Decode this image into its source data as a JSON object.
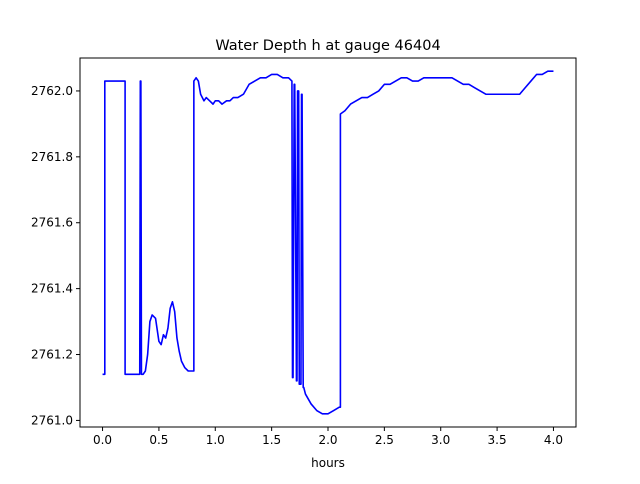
{
  "chart_data": {
    "type": "line",
    "title": "Water Depth h at gauge 46404",
    "xlabel": "hours",
    "ylabel": "",
    "xlim": [
      -0.2,
      4.2
    ],
    "ylim": [
      2760.98,
      2762.1
    ],
    "xticks": [
      0.0,
      0.5,
      1.0,
      1.5,
      2.0,
      2.5,
      3.0,
      3.5,
      4.0
    ],
    "xtick_labels": [
      "0.0",
      "0.5",
      "1.0",
      "1.5",
      "2.0",
      "2.5",
      "3.0",
      "3.5",
      "4.0"
    ],
    "yticks": [
      2761.0,
      2761.2,
      2761.4,
      2761.6,
      2761.8,
      2762.0
    ],
    "ytick_labels": [
      "2761.0",
      "2761.2",
      "2761.4",
      "2761.6",
      "2761.8",
      "2762.0"
    ],
    "grid": false,
    "series": [
      {
        "color": "#0000ff",
        "x": [
          0.0,
          0.02,
          0.02,
          0.2,
          0.2,
          0.3,
          0.32,
          0.33,
          0.335,
          0.34,
          0.345,
          0.36,
          0.38,
          0.4,
          0.42,
          0.44,
          0.47,
          0.5,
          0.52,
          0.54,
          0.56,
          0.58,
          0.6,
          0.62,
          0.64,
          0.66,
          0.68,
          0.7,
          0.73,
          0.76,
          0.8,
          0.81,
          0.81,
          0.83,
          0.85,
          0.87,
          0.9,
          0.92,
          0.95,
          0.98,
          1.0,
          1.03,
          1.06,
          1.1,
          1.13,
          1.16,
          1.2,
          1.25,
          1.3,
          1.35,
          1.4,
          1.45,
          1.5,
          1.55,
          1.6,
          1.65,
          1.68,
          1.685,
          1.69,
          1.7,
          1.705,
          1.72,
          1.725,
          1.73,
          1.74,
          1.745,
          1.76,
          1.765,
          1.77,
          1.78,
          1.785,
          1.8,
          1.85,
          1.9,
          1.95,
          2.0,
          2.05,
          2.1,
          2.11,
          2.11,
          2.15,
          2.2,
          2.25,
          2.3,
          2.35,
          2.4,
          2.45,
          2.5,
          2.55,
          2.6,
          2.65,
          2.7,
          2.75,
          2.8,
          2.85,
          2.9,
          2.95,
          3.0,
          3.05,
          3.1,
          3.15,
          3.2,
          3.25,
          3.3,
          3.35,
          3.4,
          3.45,
          3.5,
          3.55,
          3.6,
          3.65,
          3.7,
          3.75,
          3.8,
          3.85,
          3.9,
          3.95,
          4.0
        ],
        "y": [
          2761.14,
          2761.14,
          2762.03,
          2762.03,
          2761.14,
          2761.14,
          2761.14,
          2761.14,
          2762.03,
          2762.03,
          2761.14,
          2761.14,
          2761.15,
          2761.2,
          2761.3,
          2761.32,
          2761.31,
          2761.24,
          2761.23,
          2761.26,
          2761.25,
          2761.28,
          2761.34,
          2761.36,
          2761.33,
          2761.25,
          2761.21,
          2761.18,
          2761.16,
          2761.15,
          2761.15,
          2761.15,
          2762.03,
          2762.04,
          2762.03,
          2761.99,
          2761.97,
          2761.98,
          2761.97,
          2761.96,
          2761.97,
          2761.97,
          2761.96,
          2761.97,
          2761.97,
          2761.98,
          2761.98,
          2761.99,
          2762.02,
          2762.03,
          2762.04,
          2762.04,
          2762.05,
          2762.05,
          2762.04,
          2762.04,
          2762.03,
          2761.13,
          2761.13,
          2762.02,
          2762.02,
          2761.12,
          2761.12,
          2762.0,
          2762.0,
          2761.11,
          2761.11,
          2761.99,
          2761.99,
          2761.1,
          2761.1,
          2761.08,
          2761.05,
          2761.03,
          2761.02,
          2761.02,
          2761.03,
          2761.04,
          2761.04,
          2761.93,
          2761.94,
          2761.96,
          2761.97,
          2761.98,
          2761.98,
          2761.99,
          2762.0,
          2762.02,
          2762.02,
          2762.03,
          2762.04,
          2762.04,
          2762.03,
          2762.03,
          2762.04,
          2762.04,
          2762.04,
          2762.04,
          2762.04,
          2762.04,
          2762.03,
          2762.02,
          2762.02,
          2762.01,
          2762.0,
          2761.99,
          2761.99,
          2761.99,
          2761.99,
          2761.99,
          2761.99,
          2761.99,
          2762.01,
          2762.03,
          2762.05,
          2762.05,
          2762.06,
          2762.06
        ]
      }
    ]
  }
}
